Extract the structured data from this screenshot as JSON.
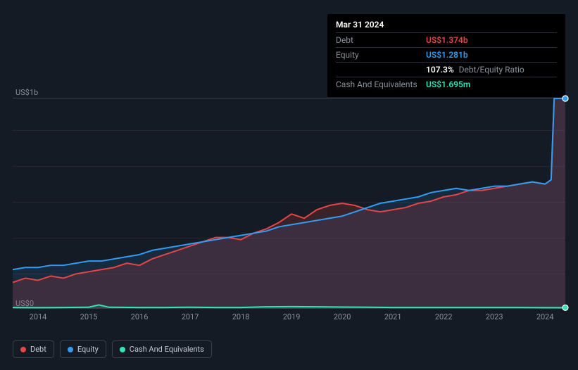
{
  "tooltip": {
    "date": "Mar 31 2024",
    "rows": [
      {
        "label": "Debt",
        "value": "US$1.374b",
        "color": "#e64545"
      },
      {
        "label": "Equity",
        "value": "US$1.281b",
        "color": "#2f9df4"
      },
      {
        "label": "",
        "value": "107.3%",
        "extra": "Debt/Equity Ratio",
        "color": "#ffffff"
      },
      {
        "label": "Cash And Equivalents",
        "value": "US$1.695m",
        "color": "#2ee6b6"
      }
    ]
  },
  "chart": {
    "type": "area",
    "background_color": "#151b24",
    "grid_color": "#22272f",
    "axis_color": "#3a4048",
    "label_color": "#8a9199",
    "label_fontsize": 11,
    "y_axis": {
      "min": 0,
      "max": 1.0,
      "labels": [
        {
          "v": 0,
          "text": "US$0"
        },
        {
          "v": 1.0,
          "text": "US$1b"
        }
      ],
      "gridlines": [
        0.166,
        0.333,
        0.5,
        0.666,
        0.833
      ]
    },
    "x_axis": {
      "min": 2013.5,
      "max": 2024.4,
      "labels": [
        "2014",
        "2015",
        "2016",
        "2017",
        "2018",
        "2019",
        "2020",
        "2021",
        "2022",
        "2023",
        "2024"
      ]
    },
    "series": [
      {
        "name": "Debt",
        "color": "#e64545",
        "fill_opacity": 0.18,
        "line_width": 2,
        "data": [
          [
            2013.5,
            0.12
          ],
          [
            2013.75,
            0.14
          ],
          [
            2014,
            0.13
          ],
          [
            2014.25,
            0.15
          ],
          [
            2014.5,
            0.14
          ],
          [
            2014.75,
            0.16
          ],
          [
            2015,
            0.17
          ],
          [
            2015.25,
            0.18
          ],
          [
            2015.5,
            0.19
          ],
          [
            2015.75,
            0.21
          ],
          [
            2016,
            0.2
          ],
          [
            2016.25,
            0.23
          ],
          [
            2016.5,
            0.25
          ],
          [
            2016.75,
            0.27
          ],
          [
            2017,
            0.29
          ],
          [
            2017.25,
            0.31
          ],
          [
            2017.5,
            0.33
          ],
          [
            2017.75,
            0.33
          ],
          [
            2018,
            0.32
          ],
          [
            2018.25,
            0.35
          ],
          [
            2018.5,
            0.37
          ],
          [
            2018.75,
            0.4
          ],
          [
            2019,
            0.44
          ],
          [
            2019.25,
            0.42
          ],
          [
            2019.5,
            0.46
          ],
          [
            2019.75,
            0.48
          ],
          [
            2020,
            0.49
          ],
          [
            2020.25,
            0.48
          ],
          [
            2020.5,
            0.46
          ],
          [
            2020.75,
            0.45
          ],
          [
            2021,
            0.46
          ],
          [
            2021.25,
            0.47
          ],
          [
            2021.5,
            0.49
          ],
          [
            2021.75,
            0.5
          ],
          [
            2022,
            0.52
          ],
          [
            2022.25,
            0.53
          ],
          [
            2022.5,
            0.55
          ],
          [
            2022.75,
            0.55
          ],
          [
            2023,
            0.56
          ],
          [
            2023.25,
            0.57
          ],
          [
            2023.5,
            0.58
          ],
          [
            2023.75,
            0.59
          ],
          [
            2024,
            0.58
          ],
          [
            2024.12,
            0.6
          ],
          [
            2024.18,
            1.374
          ],
          [
            2024.4,
            1.374
          ]
        ]
      },
      {
        "name": "Equity",
        "color": "#2f9df4",
        "fill_opacity": 0.12,
        "line_width": 2,
        "data": [
          [
            2013.5,
            0.18
          ],
          [
            2013.75,
            0.19
          ],
          [
            2014,
            0.19
          ],
          [
            2014.25,
            0.2
          ],
          [
            2014.5,
            0.2
          ],
          [
            2014.75,
            0.21
          ],
          [
            2015,
            0.22
          ],
          [
            2015.25,
            0.22
          ],
          [
            2015.5,
            0.23
          ],
          [
            2015.75,
            0.24
          ],
          [
            2016,
            0.25
          ],
          [
            2016.25,
            0.27
          ],
          [
            2016.5,
            0.28
          ],
          [
            2016.75,
            0.29
          ],
          [
            2017,
            0.3
          ],
          [
            2017.25,
            0.31
          ],
          [
            2017.5,
            0.32
          ],
          [
            2017.75,
            0.33
          ],
          [
            2018,
            0.34
          ],
          [
            2018.25,
            0.35
          ],
          [
            2018.5,
            0.36
          ],
          [
            2018.75,
            0.38
          ],
          [
            2019,
            0.39
          ],
          [
            2019.25,
            0.4
          ],
          [
            2019.5,
            0.41
          ],
          [
            2019.75,
            0.42
          ],
          [
            2020,
            0.43
          ],
          [
            2020.25,
            0.45
          ],
          [
            2020.5,
            0.47
          ],
          [
            2020.75,
            0.49
          ],
          [
            2021,
            0.5
          ],
          [
            2021.25,
            0.51
          ],
          [
            2021.5,
            0.52
          ],
          [
            2021.75,
            0.54
          ],
          [
            2022,
            0.55
          ],
          [
            2022.25,
            0.56
          ],
          [
            2022.5,
            0.55
          ],
          [
            2022.75,
            0.56
          ],
          [
            2023,
            0.57
          ],
          [
            2023.25,
            0.57
          ],
          [
            2023.5,
            0.58
          ],
          [
            2023.75,
            0.59
          ],
          [
            2024,
            0.58
          ],
          [
            2024.12,
            0.6
          ],
          [
            2024.18,
            1.281
          ],
          [
            2024.4,
            1.281
          ]
        ]
      },
      {
        "name": "Cash And Equivalents",
        "color": "#2ee6b6",
        "fill_opacity": 0.15,
        "line_width": 2,
        "data": [
          [
            2013.5,
            0.003
          ],
          [
            2014,
            0.002
          ],
          [
            2014.5,
            0.003
          ],
          [
            2015,
            0.004
          ],
          [
            2015.2,
            0.015
          ],
          [
            2015.4,
            0.004
          ],
          [
            2016,
            0.003
          ],
          [
            2016.5,
            0.003
          ],
          [
            2017,
            0.004
          ],
          [
            2017.5,
            0.003
          ],
          [
            2018,
            0.003
          ],
          [
            2018.5,
            0.006
          ],
          [
            2019,
            0.007
          ],
          [
            2019.5,
            0.006
          ],
          [
            2020,
            0.005
          ],
          [
            2020.5,
            0.004
          ],
          [
            2021,
            0.003
          ],
          [
            2021.5,
            0.003
          ],
          [
            2022,
            0.003
          ],
          [
            2022.5,
            0.003
          ],
          [
            2023,
            0.003
          ],
          [
            2023.5,
            0.003
          ],
          [
            2024,
            0.002
          ],
          [
            2024.4,
            0.002
          ]
        ]
      }
    ],
    "end_markers": [
      {
        "series": "Debt",
        "color": "#e64545",
        "y": 1.374
      },
      {
        "series": "Equity",
        "color": "#2f9df4",
        "y": 1.281
      },
      {
        "series": "Cash And Equivalents",
        "color": "#2ee6b6",
        "y": 0.002
      }
    ]
  },
  "legend": {
    "items": [
      {
        "label": "Debt",
        "color": "#e64545"
      },
      {
        "label": "Equity",
        "color": "#2f9df4"
      },
      {
        "label": "Cash And Equivalents",
        "color": "#2ee6b6"
      }
    ]
  }
}
